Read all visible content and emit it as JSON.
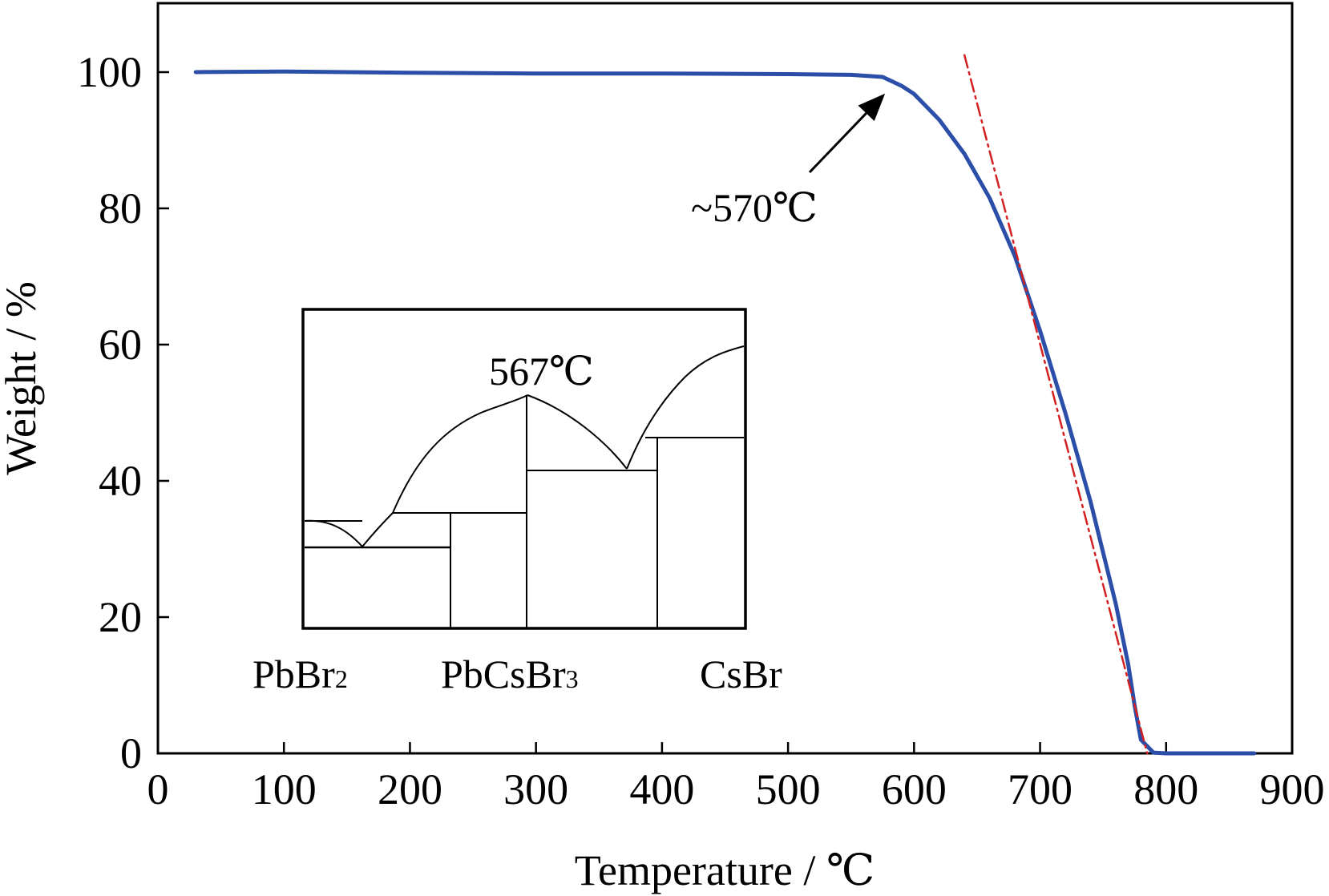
{
  "chart_data": {
    "type": "line",
    "xlabel": "Temperature / ℃",
    "ylabel": "Weight / %",
    "xlim": [
      0,
      900
    ],
    "ylim": [
      0,
      110
    ],
    "x_ticks": [
      "0",
      "100",
      "200",
      "300",
      "400",
      "500",
      "600",
      "700",
      "800",
      "900"
    ],
    "y_ticks": [
      "0",
      "20",
      "40",
      "60",
      "80",
      "100"
    ],
    "grid": false,
    "series": [
      {
        "color": "#2b4ea8",
        "style": "solid",
        "points": [
          [
            30,
            100.0
          ],
          [
            100,
            100.1
          ],
          [
            200,
            99.9
          ],
          [
            300,
            99.8
          ],
          [
            400,
            99.8
          ],
          [
            500,
            99.7
          ],
          [
            550,
            99.6
          ],
          [
            575,
            99.3
          ],
          [
            590,
            98.0
          ],
          [
            600,
            96.8
          ],
          [
            620,
            93.0
          ],
          [
            640,
            88.0
          ],
          [
            660,
            81.5
          ],
          [
            680,
            73.0
          ],
          [
            700,
            62.0
          ],
          [
            720,
            50.0
          ],
          [
            740,
            37.0
          ],
          [
            760,
            22.0
          ],
          [
            770,
            13.0
          ],
          [
            775,
            7.0
          ],
          [
            780,
            2.0
          ],
          [
            790,
            0.1
          ],
          [
            800,
            0.0
          ],
          [
            830,
            0.0
          ],
          [
            870,
            0.0
          ]
        ]
      },
      {
        "color": "#d42020",
        "style": "dash-dot",
        "points": [
          [
            640,
            102.5
          ],
          [
            785,
            0.0
          ]
        ]
      }
    ],
    "annotations": [
      {
        "text": "~570℃",
        "arrow_to": [
          577,
          99.2
        ]
      }
    ],
    "inset": {
      "type": "phase-diagram",
      "eutectic_label": "567℃",
      "x_labels": [
        {
          "base": "PbBr",
          "sub": "2"
        },
        {
          "base": "PbCsBr",
          "sub": "3"
        },
        {
          "base": "CsBr",
          "sub": ""
        }
      ]
    }
  }
}
